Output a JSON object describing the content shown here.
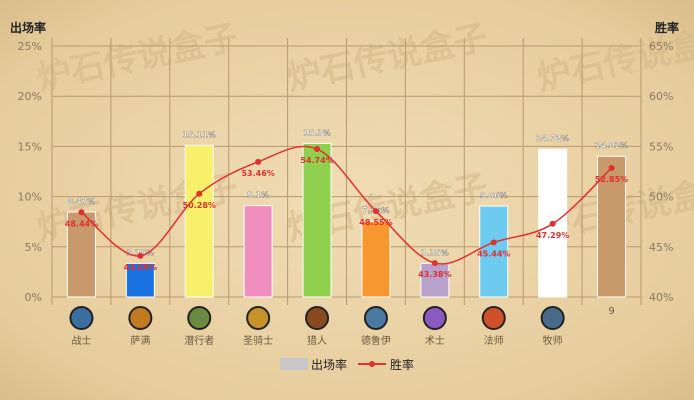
{
  "chart_data": {
    "type": "bar+line",
    "ylabel_left": "出场率",
    "ylabel_right": "胜率",
    "ylim_left": [
      0,
      25
    ],
    "ylim_right": [
      40,
      65
    ],
    "yticks_left": [
      "0%",
      "5%",
      "10%",
      "15%",
      "20%",
      "25%"
    ],
    "yticks_right": [
      "40%",
      "45%",
      "50%",
      "55%",
      "60%",
      "65%"
    ],
    "categories": [
      "战士",
      "萨满",
      "潜行者",
      "圣骑士",
      "猎人",
      "德鲁伊",
      "术士",
      "法师",
      "牧师",
      "9"
    ],
    "icons": [
      "warrior-icon",
      "shaman-icon",
      "rogue-icon",
      "paladin-icon",
      "hunter-icon",
      "druid-icon",
      "warlock-icon",
      "mage-icon",
      "priest-icon",
      ""
    ],
    "icon_colors": [
      "#3b6fa0",
      "#c07a20",
      "#6a8a40",
      "#c8922a",
      "#8a4a20",
      "#4a7aa0",
      "#8a5ac0",
      "#d0502a",
      "#4a6a8a",
      ""
    ],
    "series": [
      {
        "name": "出场率",
        "type": "bar",
        "values": [
          8.47,
          3.35,
          15.11,
          9.1,
          15.3,
          7.55,
          3.35,
          9.06,
          14.72,
          14.02
        ],
        "labels": [
          "8.47%",
          "3.35%",
          "15.11%",
          "9.1%",
          "15.3%",
          "7.55%",
          "3.35%",
          "9.06%",
          "14.72%",
          "14.02%"
        ],
        "colors": [
          "#c8996b",
          "#1a73e0",
          "#f8f06a",
          "#f08ec0",
          "#8fd14f",
          "#f7972f",
          "#b8a2cc",
          "#6ccbef",
          "#ffffff",
          "#c8996b"
        ]
      },
      {
        "name": "胜率",
        "type": "line",
        "values": [
          48.44,
          44.09,
          50.28,
          53.46,
          54.74,
          48.55,
          43.38,
          45.44,
          47.29,
          52.85
        ],
        "labels": [
          "48.44%",
          "44.09%",
          "50.28%",
          "53.46%",
          "54.74%",
          "48.55%",
          "43.38%",
          "45.44%",
          "47.29%",
          "52.85%"
        ],
        "color": "#e03030"
      }
    ],
    "legend": {
      "bar": "出场率",
      "line": "胜率",
      "placement": "bottom",
      "bar_swatch": "#c8c8c8"
    },
    "grid": true,
    "watermark": "炉石传说盒子"
  }
}
